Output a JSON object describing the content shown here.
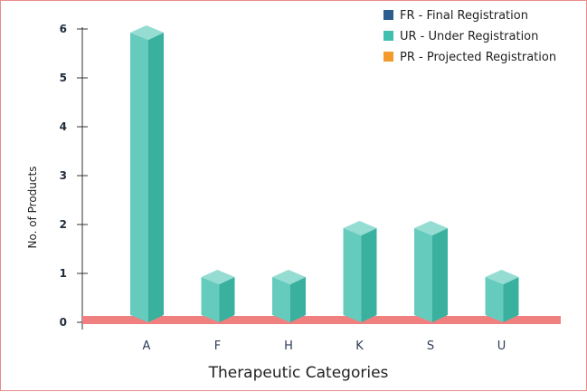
{
  "chart_data": {
    "type": "bar",
    "categories": [
      "A",
      "F",
      "H",
      "K",
      "S",
      "U"
    ],
    "series": [
      {
        "name": "FR - Final Registration",
        "values": [
          0,
          0,
          0,
          0,
          0,
          0
        ],
        "color": "#2b5d8f"
      },
      {
        "name": "UR - Under Registration",
        "values": [
          6,
          1,
          1,
          2,
          2,
          1
        ],
        "color": "#3fbfad"
      },
      {
        "name": "PR - Projected Registration",
        "values": [
          0,
          0,
          0,
          0,
          0,
          0
        ],
        "color": "#f39a2b"
      }
    ],
    "xlabel": "Therapeutic Categories",
    "ylabel": "No. of Products",
    "ylim": [
      0,
      6
    ],
    "yticks": [
      0,
      1,
      2,
      3,
      4,
      5,
      6
    ],
    "style": "3d-column",
    "floor_color": "#f08080",
    "legend_position": "top-right",
    "grid": false
  }
}
